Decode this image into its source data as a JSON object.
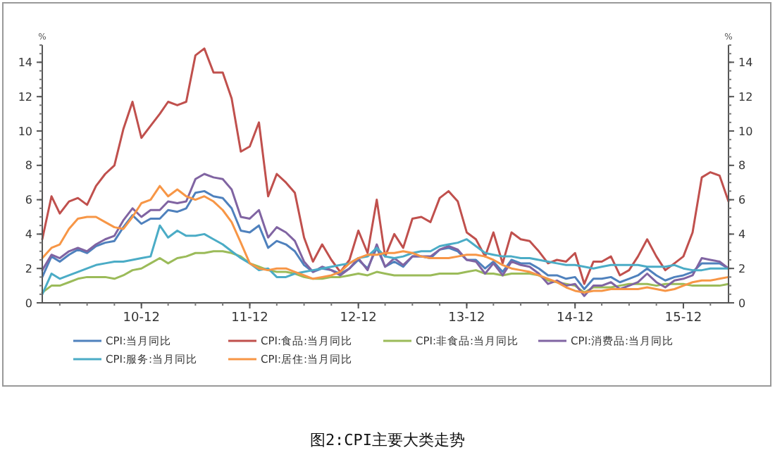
{
  "chart_data": {
    "type": "line",
    "title": "图2:CPI主要大类走势",
    "ylabel": "%",
    "y2label": "%",
    "x": [
      "2010-01",
      "2010-02",
      "2010-03",
      "2010-04",
      "2010-05",
      "2010-06",
      "2010-07",
      "2010-08",
      "2010-09",
      "2010-10",
      "2010-11",
      "2010-12",
      "2011-01",
      "2011-02",
      "2011-03",
      "2011-04",
      "2011-05",
      "2011-06",
      "2011-07",
      "2011-08",
      "2011-09",
      "2011-10",
      "2011-11",
      "2011-12",
      "2012-01",
      "2012-02",
      "2012-03",
      "2012-04",
      "2012-05",
      "2012-06",
      "2012-07",
      "2012-08",
      "2012-09",
      "2012-10",
      "2012-11",
      "2012-12",
      "2013-01",
      "2013-02",
      "2013-03",
      "2013-04",
      "2013-05",
      "2013-06",
      "2013-07",
      "2013-08",
      "2013-09",
      "2013-10",
      "2013-11",
      "2013-12",
      "2014-01",
      "2014-02",
      "2014-03",
      "2014-04",
      "2014-05",
      "2014-06",
      "2014-07",
      "2014-08",
      "2014-09",
      "2014-10",
      "2014-11",
      "2014-12",
      "2015-01",
      "2015-02",
      "2015-03",
      "2015-04",
      "2015-05",
      "2015-06",
      "2015-07",
      "2015-08",
      "2015-09",
      "2015-10",
      "2015-11",
      "2015-12",
      "2016-01",
      "2016-02",
      "2016-03",
      "2016-04",
      "2016-05"
    ],
    "xlim": [
      "2010-01",
      "2016-05"
    ],
    "xticks": [
      {
        "value": "2010-12",
        "label": "10-12"
      },
      {
        "value": "2011-12",
        "label": "11-12"
      },
      {
        "value": "2012-12",
        "label": "12-12"
      },
      {
        "value": "2013-12",
        "label": "13-12"
      },
      {
        "value": "2014-12",
        "label": "14-12"
      },
      {
        "value": "2015-12",
        "label": "15-12"
      }
    ],
    "ylim": [
      0,
      15
    ],
    "yticks": [
      0,
      2,
      4,
      6,
      8,
      10,
      12,
      14
    ],
    "y2lim": [
      0,
      15
    ],
    "y2ticks": [
      0,
      2,
      4,
      6,
      8,
      10,
      12,
      14
    ],
    "grid": false,
    "legend": "bottom",
    "marker": "none",
    "line_style": "solid",
    "series": [
      {
        "name": "CPI:当月同比",
        "color": "#4f81bd",
        "values": [
          1.5,
          2.7,
          2.4,
          2.8,
          3.1,
          2.9,
          3.3,
          3.5,
          3.6,
          4.4,
          5.1,
          4.6,
          4.9,
          4.9,
          5.4,
          5.3,
          5.5,
          6.4,
          6.5,
          6.2,
          6.1,
          5.5,
          4.2,
          4.1,
          4.5,
          3.2,
          3.6,
          3.4,
          3.0,
          2.2,
          1.8,
          2.0,
          1.9,
          1.7,
          2.0,
          2.5,
          2.0,
          3.2,
          2.1,
          2.4,
          2.1,
          2.7,
          2.7,
          2.6,
          3.1,
          3.2,
          3.0,
          2.5,
          2.5,
          2.0,
          2.4,
          1.8,
          2.5,
          2.3,
          2.3,
          2.0,
          1.6,
          1.6,
          1.4,
          1.5,
          0.8,
          1.4,
          1.4,
          1.5,
          1.2,
          1.4,
          1.6,
          2.0,
          1.6,
          1.3,
          1.5,
          1.6,
          1.8,
          2.3,
          2.3,
          2.3,
          2.0
        ]
      },
      {
        "name": "CPI:食品:当月同比",
        "color": "#c0504d",
        "values": [
          3.7,
          6.2,
          5.2,
          5.9,
          6.1,
          5.7,
          6.8,
          7.5,
          8.0,
          10.1,
          11.7,
          9.6,
          10.3,
          11.0,
          11.7,
          11.5,
          11.7,
          14.4,
          14.8,
          13.4,
          13.4,
          11.9,
          8.8,
          9.1,
          10.5,
          6.2,
          7.5,
          7.0,
          6.4,
          3.8,
          2.4,
          3.4,
          2.5,
          1.8,
          2.5,
          4.2,
          2.9,
          6.0,
          2.7,
          4.0,
          3.2,
          4.9,
          5.0,
          4.7,
          6.1,
          6.5,
          5.9,
          4.1,
          3.7,
          2.7,
          4.1,
          2.3,
          4.1,
          3.7,
          3.6,
          3.0,
          2.3,
          2.5,
          2.4,
          2.9,
          1.1,
          2.4,
          2.4,
          2.7,
          1.6,
          1.9,
          2.7,
          3.7,
          2.7,
          1.9,
          2.3,
          2.7,
          4.1,
          7.3,
          7.6,
          7.4,
          5.9
        ]
      },
      {
        "name": "CPI:非食品:当月同比",
        "color": "#9bbb59",
        "values": [
          0.6,
          1.0,
          1.0,
          1.2,
          1.4,
          1.5,
          1.5,
          1.5,
          1.4,
          1.6,
          1.9,
          2.0,
          2.3,
          2.6,
          2.3,
          2.6,
          2.7,
          2.9,
          2.9,
          3.0,
          3.0,
          2.9,
          2.7,
          2.3,
          2.1,
          1.9,
          1.8,
          1.8,
          1.7,
          1.5,
          1.4,
          1.4,
          1.5,
          1.5,
          1.6,
          1.7,
          1.6,
          1.8,
          1.7,
          1.6,
          1.6,
          1.6,
          1.6,
          1.6,
          1.7,
          1.7,
          1.7,
          1.8,
          1.9,
          1.7,
          1.7,
          1.6,
          1.7,
          1.7,
          1.7,
          1.6,
          1.3,
          1.2,
          1.1,
          1.0,
          0.6,
          0.9,
          0.9,
          0.9,
          1.0,
          1.1,
          1.1,
          1.1,
          1.0,
          1.1,
          1.1,
          1.1,
          1.0,
          1.0,
          1.0,
          1.0,
          1.1
        ]
      },
      {
        "name": "CPI:消费品:当月同比",
        "color": "#8064a2",
        "values": [
          1.9,
          2.8,
          2.6,
          3.0,
          3.2,
          3.0,
          3.4,
          3.7,
          3.9,
          4.8,
          5.5,
          5.0,
          5.4,
          5.4,
          5.9,
          5.8,
          5.9,
          7.2,
          7.5,
          7.3,
          7.2,
          6.6,
          5.0,
          4.9,
          5.4,
          3.8,
          4.4,
          4.1,
          3.6,
          2.4,
          1.8,
          2.1,
          1.9,
          1.6,
          2.0,
          2.6,
          1.9,
          3.4,
          2.1,
          2.6,
          2.2,
          2.7,
          2.7,
          2.7,
          3.1,
          3.3,
          3.1,
          2.5,
          2.4,
          1.7,
          2.3,
          1.6,
          2.4,
          2.2,
          2.1,
          1.7,
          1.1,
          1.3,
          1.0,
          1.1,
          0.4,
          1.0,
          1.0,
          1.2,
          0.8,
          1.0,
          1.2,
          1.7,
          1.2,
          0.9,
          1.3,
          1.4,
          1.6,
          2.6,
          2.5,
          2.4,
          2.0
        ]
      },
      {
        "name": "CPI:服务:当月同比",
        "color": "#4bacc6",
        "values": [
          0.5,
          1.7,
          1.4,
          1.6,
          1.8,
          2.0,
          2.2,
          2.3,
          2.4,
          2.4,
          2.5,
          2.6,
          2.7,
          4.5,
          3.8,
          4.2,
          3.9,
          3.9,
          4.0,
          3.7,
          3.4,
          3.0,
          2.6,
          2.3,
          1.9,
          2.0,
          1.5,
          1.5,
          1.7,
          1.8,
          1.9,
          2.0,
          2.1,
          2.2,
          2.3,
          2.6,
          2.7,
          3.2,
          2.7,
          2.6,
          2.7,
          2.9,
          3.0,
          3.0,
          3.3,
          3.4,
          3.5,
          3.7,
          3.3,
          2.9,
          2.8,
          2.7,
          2.7,
          2.6,
          2.6,
          2.5,
          2.4,
          2.3,
          2.2,
          2.2,
          2.1,
          2.0,
          2.1,
          2.2,
          2.2,
          2.2,
          2.2,
          2.1,
          2.1,
          2.1,
          2.2,
          2.0,
          1.9,
          1.9,
          2.0,
          2.0,
          2.0
        ]
      },
      {
        "name": "CPI:居住:当月同比",
        "color": "#f79646",
        "values": [
          2.6,
          3.2,
          3.4,
          4.3,
          4.9,
          5.0,
          5.0,
          4.7,
          4.4,
          4.3,
          5.0,
          5.8,
          6.0,
          6.8,
          6.2,
          6.6,
          6.2,
          6.0,
          6.2,
          5.9,
          5.4,
          4.7,
          3.5,
          2.3,
          2.0,
          1.9,
          2.0,
          2.0,
          1.8,
          1.6,
          1.4,
          1.5,
          1.6,
          1.8,
          2.3,
          2.6,
          2.8,
          2.8,
          2.9,
          2.9,
          3.0,
          2.9,
          2.7,
          2.6,
          2.6,
          2.6,
          2.7,
          2.8,
          2.8,
          2.7,
          2.5,
          2.2,
          2.0,
          1.9,
          1.8,
          1.6,
          1.4,
          1.2,
          0.9,
          0.7,
          0.6,
          0.7,
          0.7,
          0.8,
          0.8,
          0.8,
          0.8,
          0.9,
          0.8,
          0.7,
          0.8,
          1.0,
          1.2,
          1.3,
          1.3,
          1.4,
          1.5
        ]
      }
    ]
  }
}
